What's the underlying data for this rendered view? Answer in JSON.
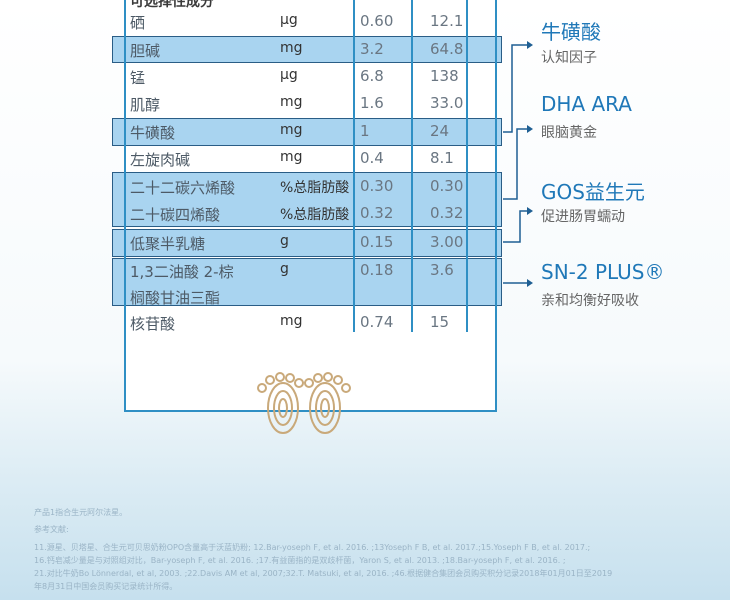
{
  "table": {
    "section_title": "可选择性成分",
    "rows": [
      {
        "name": "硒",
        "unit": "μg",
        "v1": "0.60",
        "v2": "12.1"
      },
      {
        "name": "胆碱",
        "unit": "mg",
        "v1": "3.2",
        "v2": "64.8"
      },
      {
        "name": "锰",
        "unit": "μg",
        "v1": "6.8",
        "v2": "138"
      },
      {
        "name": "肌醇",
        "unit": "mg",
        "v1": "1.6",
        "v2": "33.0"
      },
      {
        "name": "牛磺酸",
        "unit": "mg",
        "v1": "1",
        "v2": "24"
      },
      {
        "name": "左旋肉碱",
        "unit": "mg",
        "v1": "0.4",
        "v2": "8.1"
      },
      {
        "name": "二十二碳六烯酸",
        "unit": "%总脂肪酸",
        "v1": "0.30",
        "v2": "0.30"
      },
      {
        "name": "二十碳四烯酸",
        "unit": "%总脂肪酸",
        "v1": "0.32",
        "v2": "0.32"
      },
      {
        "name": "低聚半乳糖",
        "unit": "g",
        "v1": "0.15",
        "v2": "3.00"
      },
      {
        "name": "1,3二油酸 2-棕",
        "name2": "榈酸甘油三酯",
        "unit": "g",
        "v1": "0.18",
        "v2": "3.6"
      },
      {
        "name": "核苷酸",
        "unit": "mg",
        "v1": "0.74",
        "v2": "15"
      }
    ]
  },
  "callouts": [
    {
      "title": "牛磺酸",
      "subtitle": "认知因子"
    },
    {
      "title": "DHA ARA",
      "subtitle": "眼脑黄金"
    },
    {
      "title": "GOS益生元",
      "subtitle": "促进肠胃蠕动"
    },
    {
      "title": "SN-2 PLUS®",
      "subtitle": "亲和均衡好吸收"
    }
  ],
  "footnotes": {
    "note": "产品1指合生元阿尔法星。",
    "refs_title": "参考文献:",
    "lines": [
      "11.源星、贝塔星、合生元可贝思奶粉OPO含量高于沃蓝奶粉; 12.Bar-yoseph F, et al. 2016. ;13Yoseph F B, et al. 2017.;15.Yoseph F B, et al. 2017.;",
      "16.钙皂减少量是与对照组对比，Bar-yoseph F, et al. 2016. ;17.有益菌指的是双歧杆菌，Yaron S, et al. 2013. ;18.Bar-yoseph F, et al. 2016. ;",
      "21.对比牛奶Bo Lönnerdal, et al, 2003. ;22.Davis AM et al, 2007;32.T. Matsuki, et al, 2016. ;46.根据健合集团会员购买积分记录2018年01月01日至2019",
      "年8月31日中国会员购买记录统计所得。"
    ]
  },
  "colors": {
    "accent": "#1f78b8",
    "highlight": "#a9d4f0",
    "border": "#2f8fc4"
  }
}
